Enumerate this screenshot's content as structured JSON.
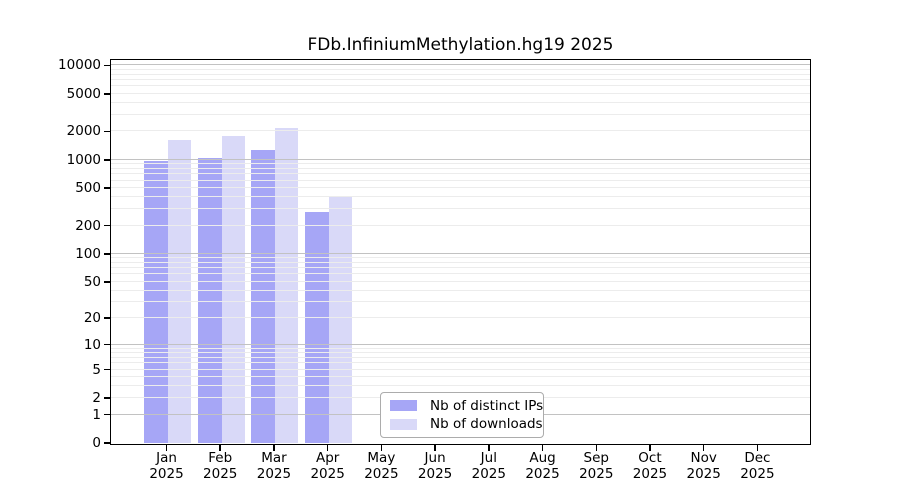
{
  "title": "FDb.InfiniumMethylation.hg19 2025",
  "legend": {
    "items": [
      {
        "label": "Nb of distinct IPs",
        "color": "#a6a6f6"
      },
      {
        "label": "Nb of downloads",
        "color": "#d9d9f8"
      }
    ]
  },
  "chart_data": {
    "type": "bar",
    "title": "FDb.InfiniumMethylation.hg19 2025",
    "categories": [
      "Jan",
      "Feb",
      "Mar",
      "Apr",
      "May",
      "Jun",
      "Jul",
      "Aug",
      "Sep",
      "Oct",
      "Nov",
      "Dec"
    ],
    "category_year": "2025",
    "series": [
      {
        "name": "Nb of distinct IPs",
        "color": "#a6a6f6",
        "values": [
          950,
          1040,
          1240,
          275,
          null,
          null,
          null,
          null,
          null,
          null,
          null,
          null
        ]
      },
      {
        "name": "Nb of downloads",
        "color": "#d9d9f8",
        "values": [
          1600,
          1780,
          2150,
          405,
          null,
          null,
          null,
          null,
          null,
          null,
          null,
          null
        ]
      }
    ],
    "yscale": "log1p",
    "ylim": [
      0,
      10000
    ],
    "yticks": [
      0,
      1,
      2,
      5,
      10,
      20,
      50,
      100,
      200,
      500,
      1000,
      2000,
      5000,
      10000
    ],
    "grid": {
      "orientation": "horizontal",
      "major_at": [
        1,
        10,
        100,
        1000,
        10000
      ],
      "major_color": "#c2c2c2",
      "minor_color": "#ececec"
    },
    "legend_position": "inside-bottom-center",
    "colors": {
      "background": "#ffffff",
      "axis": "#000000"
    }
  }
}
